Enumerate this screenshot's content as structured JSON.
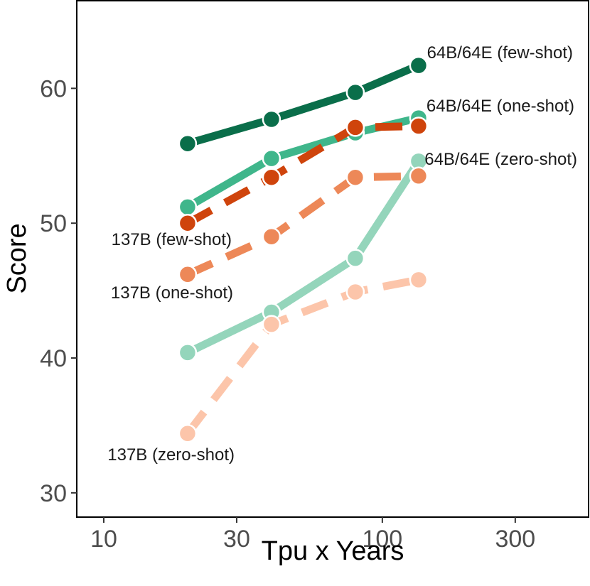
{
  "chart_data": {
    "type": "line",
    "title": "",
    "xlabel": "Tpu x Years",
    "ylabel": "Score",
    "x_scale": "log10",
    "xlim": [
      8,
      550
    ],
    "ylim": [
      28.2,
      66.5
    ],
    "x_ticks": [
      10,
      30,
      100,
      300
    ],
    "x_tick_labels": [
      "10",
      "30",
      "100",
      "300"
    ],
    "y_ticks": [
      30,
      40,
      50,
      60
    ],
    "y_tick_labels": [
      "30",
      "40",
      "50",
      "60"
    ],
    "grid": false,
    "legend": "none",
    "series": [
      {
        "name": "64B/64E (zero-shot)",
        "label": "64B/64E (zero-shot)",
        "color": "#94d5bb",
        "dashed": false,
        "x": [
          20,
          40,
          80,
          135
        ],
        "y": [
          40.4,
          43.4,
          47.4,
          54.6
        ]
      },
      {
        "name": "137B (zero-shot)",
        "label": "137B (zero-shot)",
        "color": "#fcc5aa",
        "dashed": true,
        "x": [
          20,
          40,
          80,
          135
        ],
        "y": [
          34.4,
          42.5,
          44.9,
          45.8
        ]
      },
      {
        "name": "137B (one-shot)",
        "label": "137B (one-shot)",
        "color": "#ed8858",
        "dashed": true,
        "x": [
          20,
          40,
          80,
          135
        ],
        "y": [
          46.2,
          49.0,
          53.4,
          53.5
        ]
      },
      {
        "name": "64B/64E (one-shot)",
        "label": "64B/64E (one-shot)",
        "color": "#3fb68b",
        "dashed": false,
        "x": [
          20,
          40,
          80,
          135
        ],
        "y": [
          51.2,
          54.8,
          56.7,
          57.8
        ]
      },
      {
        "name": "137B (few-shot)",
        "label": "137B (few-shot)",
        "color": "#cf440c",
        "dashed": true,
        "x": [
          20,
          40,
          80,
          135
        ],
        "y": [
          50.0,
          53.4,
          57.1,
          57.2
        ]
      },
      {
        "name": "64B/64E (few-shot)",
        "label": "64B/64E (few-shot)",
        "color": "#0a6e4a",
        "dashed": false,
        "x": [
          20,
          40,
          80,
          135
        ],
        "y": [
          55.9,
          57.7,
          59.7,
          61.7
        ]
      }
    ]
  }
}
